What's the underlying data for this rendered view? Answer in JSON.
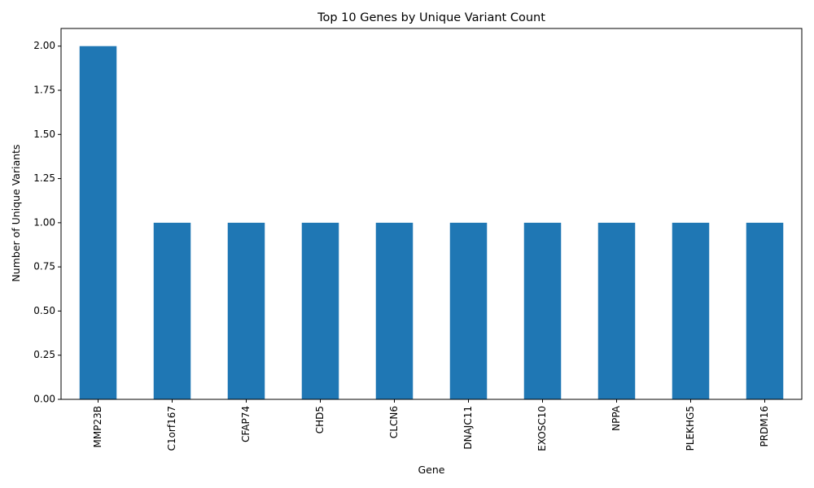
{
  "chart_data": {
    "type": "bar",
    "title": "Top 10 Genes by Unique Variant Count",
    "xlabel": "Gene",
    "ylabel": "Number of Unique Variants",
    "categories": [
      "MMP23B",
      "C1orf167",
      "CFAP74",
      "CHD5",
      "CLCN6",
      "DNAJC11",
      "EXOSC10",
      "NPPA",
      "PLEKHG5",
      "PRDM16"
    ],
    "values": [
      2,
      1,
      1,
      1,
      1,
      1,
      1,
      1,
      1,
      1
    ],
    "ylim": [
      0,
      2.1
    ],
    "yticks": [
      "0.00",
      "0.25",
      "0.50",
      "0.75",
      "1.00",
      "1.25",
      "1.50",
      "1.75",
      "2.00"
    ],
    "grid": false,
    "bar_color": "#1f77b4"
  }
}
